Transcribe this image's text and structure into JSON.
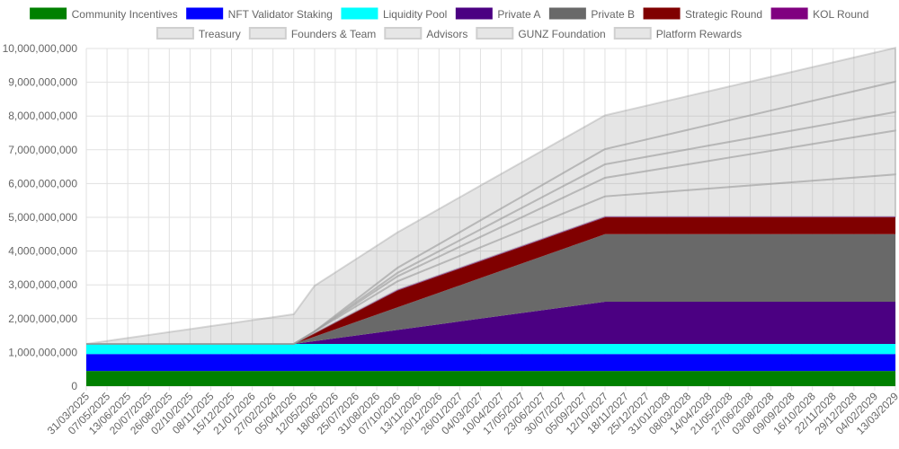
{
  "chart_data": {
    "type": "area",
    "stacked": true,
    "title": "",
    "xlabel": "",
    "ylabel": "",
    "ylim": [
      0,
      10000000000
    ],
    "yticks": [
      0,
      1000000000,
      2000000000,
      3000000000,
      4000000000,
      5000000000,
      6000000000,
      7000000000,
      8000000000,
      9000000000,
      10000000000
    ],
    "ytick_labels": [
      "0",
      "1,000,000,000",
      "2,000,000,000",
      "3,000,000,000",
      "4,000,000,000",
      "5,000,000,000",
      "6,000,000,000",
      "7,000,000,000",
      "8,000,000,000",
      "9,000,000,000",
      "10,000,000,000"
    ],
    "grid": true,
    "legend_position": "top",
    "x": [
      "31/03/2025",
      "07/05/2025",
      "13/06/2025",
      "20/07/2025",
      "26/08/2025",
      "02/10/2025",
      "08/11/2025",
      "15/12/2025",
      "21/01/2026",
      "27/02/2026",
      "05/04/2026",
      "12/05/2026",
      "18/06/2026",
      "25/07/2026",
      "31/08/2026",
      "07/10/2026",
      "13/11/2026",
      "20/12/2026",
      "26/01/2027",
      "04/03/2027",
      "10/04/2027",
      "17/05/2027",
      "23/06/2027",
      "30/07/2027",
      "05/09/2027",
      "12/10/2027",
      "18/11/2027",
      "25/12/2027",
      "31/01/2028",
      "08/03/2028",
      "14/04/2028",
      "21/05/2028",
      "27/06/2028",
      "03/08/2028",
      "09/09/2028",
      "16/10/2028",
      "22/11/2028",
      "29/12/2028",
      "04/02/2029",
      "13/03/2029"
    ],
    "series": [
      {
        "name": "Community Incentives",
        "color": "#008000",
        "fill_opacity": 1,
        "key": [
          [
            0,
            450000000
          ],
          [
            39,
            450000000
          ]
        ]
      },
      {
        "name": "NFT Validator Staking",
        "color": "#0000ff",
        "fill_opacity": 1,
        "key": [
          [
            0,
            500000000
          ],
          [
            39,
            500000000
          ]
        ]
      },
      {
        "name": "Liquidity Pool",
        "color": "#00ffff",
        "fill_opacity": 1,
        "key": [
          [
            0,
            300000000
          ],
          [
            39,
            300000000
          ]
        ]
      },
      {
        "name": "Private A",
        "color": "#4b0082",
        "fill_opacity": 1,
        "key": [
          [
            0,
            0
          ],
          [
            10,
            0
          ],
          [
            25,
            1250000000
          ],
          [
            39,
            1250000000
          ]
        ]
      },
      {
        "name": "Private B",
        "color": "#696969",
        "fill_opacity": 1,
        "key": [
          [
            0,
            0
          ],
          [
            10,
            0
          ],
          [
            25,
            2000000000
          ],
          [
            39,
            2000000000
          ]
        ]
      },
      {
        "name": "Strategic Round",
        "color": "#800000",
        "fill_opacity": 1,
        "key": [
          [
            0,
            0
          ],
          [
            10,
            0
          ],
          [
            15,
            500000000
          ],
          [
            39,
            500000000
          ]
        ]
      },
      {
        "name": "KOL Round",
        "color": "#800080",
        "fill_opacity": 1,
        "key": [
          [
            0,
            0
          ],
          [
            10,
            0
          ],
          [
            15,
            20000000
          ],
          [
            39,
            20000000
          ]
        ]
      },
      {
        "name": "Treasury",
        "color": "#aaaaaa",
        "fill_opacity": 0.3,
        "key": [
          [
            0,
            0
          ],
          [
            10,
            0
          ],
          [
            15,
            250000000
          ],
          [
            25,
            600000000
          ],
          [
            39,
            1250000000
          ]
        ]
      },
      {
        "name": "Founders & Team",
        "color": "#aaaaaa",
        "fill_opacity": 0.3,
        "key": [
          [
            0,
            0
          ],
          [
            11,
            0
          ],
          [
            15,
            150000000
          ],
          [
            25,
            550000000
          ],
          [
            39,
            1300000000
          ]
        ]
      },
      {
        "name": "Advisors",
        "color": "#aaaaaa",
        "fill_opacity": 0.3,
        "key": [
          [
            0,
            0
          ],
          [
            11,
            0
          ],
          [
            15,
            100000000
          ],
          [
            25,
            400000000
          ],
          [
            39,
            550000000
          ]
        ]
      },
      {
        "name": "GUNZ Foundation",
        "color": "#aaaaaa",
        "fill_opacity": 0.3,
        "key": [
          [
            0,
            0
          ],
          [
            11,
            0
          ],
          [
            15,
            150000000
          ],
          [
            25,
            450000000
          ],
          [
            39,
            900000000
          ]
        ]
      },
      {
        "name": "Platform Rewards",
        "color": "#aaaaaa",
        "fill_opacity": 0.3,
        "key": [
          [
            0,
            0
          ],
          [
            10,
            880000000
          ],
          [
            11,
            1350000000
          ],
          [
            15,
            1050000000
          ],
          [
            25,
            1000000000
          ],
          [
            39,
            1000000000
          ]
        ]
      }
    ]
  }
}
